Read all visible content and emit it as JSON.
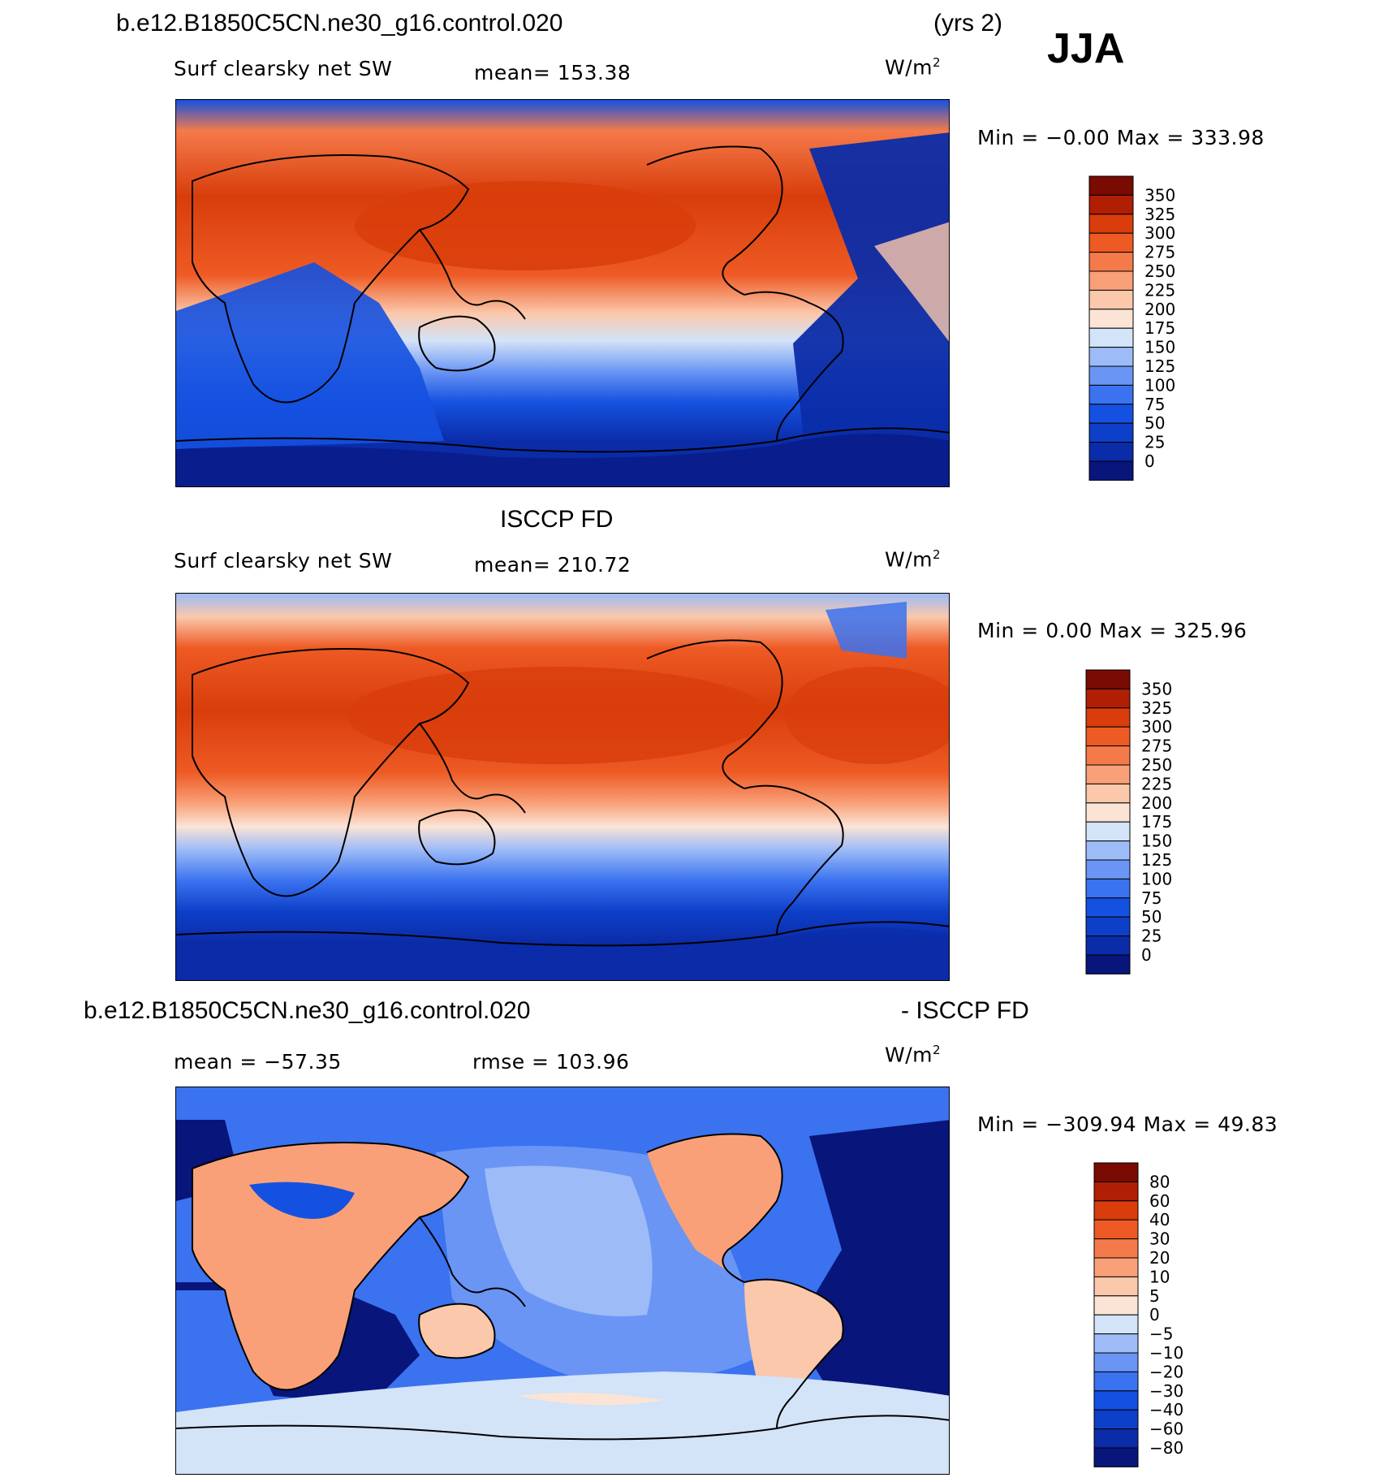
{
  "season": "JJA",
  "panels": [
    {
      "id": "model",
      "case_title": "b.e12.B1850C5CN.ne30_g16.control.020",
      "years": "(yrs 2)",
      "variable": "Surf clearsky net SW",
      "stat_text": "mean=  153.38",
      "units": "W/m",
      "units_sup": "2",
      "minmax": "Min =   −0.00  Max  =  333.98",
      "colorbar": [
        "350",
        "325",
        "300",
        "275",
        "250",
        "225",
        "200",
        "175",
        "150",
        "125",
        "100",
        "75",
        "50",
        "25",
        "0"
      ]
    },
    {
      "id": "obs",
      "case_title": "ISCCP FD",
      "variable": "Surf clearsky net SW",
      "stat_text": "mean=  210.72",
      "units": "W/m",
      "units_sup": "2",
      "minmax": "Min =     0.00  Max  =  325.96",
      "colorbar": [
        "350",
        "325",
        "300",
        "275",
        "250",
        "225",
        "200",
        "175",
        "150",
        "125",
        "100",
        "75",
        "50",
        "25",
        "0"
      ]
    },
    {
      "id": "diff",
      "case_title": "b.e12.B1850C5CN.ne30_g16.control.020",
      "case_title_right": "- ISCCP FD",
      "stat_text": "mean  =  −57.35",
      "rmse_text": "rmse  =  103.96",
      "units": "W/m",
      "units_sup": "2",
      "minmax": "Min  =  −309.94  Max  =    49.83",
      "colorbar": [
        "80",
        "60",
        "40",
        "30",
        "20",
        "10",
        "5",
        "0",
        "−5",
        "−10",
        "−20",
        "−30",
        "−40",
        "−60",
        "−80"
      ]
    }
  ],
  "colors": {
    "seq_palette": [
      "#08157a",
      "#0b2ca8",
      "#0d3fc8",
      "#1551e0",
      "#3a72f0",
      "#6a95f4",
      "#9dbbf7",
      "#d3e3f8",
      "#fbe4d5",
      "#fbc8ab",
      "#f9a078",
      "#f57a4a",
      "#ee5a24",
      "#d83d0b",
      "#b01e04",
      "#7a0b02"
    ],
    "outline": "#000000"
  },
  "chart_data": [
    {
      "type": "heatmap",
      "title": "b.e12.B1850C5CN.ne30_g16.control.020",
      "subtitle": "Surf clearsky net SW",
      "mean": 153.38,
      "min": -0.0,
      "max": 333.98,
      "units": "W/m2",
      "levels": [
        0,
        25,
        50,
        75,
        100,
        125,
        150,
        175,
        200,
        225,
        250,
        275,
        300,
        325,
        350
      ]
    },
    {
      "type": "heatmap",
      "title": "ISCCP FD",
      "subtitle": "Surf clearsky net SW",
      "mean": 210.72,
      "min": 0.0,
      "max": 325.96,
      "units": "W/m2",
      "levels": [
        0,
        25,
        50,
        75,
        100,
        125,
        150,
        175,
        200,
        225,
        250,
        275,
        300,
        325,
        350
      ]
    },
    {
      "type": "heatmap",
      "title": "b.e12.B1850C5CN.ne30_g16.control.020 - ISCCP FD",
      "mean": -57.35,
      "rmse": 103.96,
      "min": -309.94,
      "max": 49.83,
      "units": "W/m2",
      "levels": [
        -80,
        -60,
        -40,
        -30,
        -20,
        -10,
        -5,
        0,
        5,
        10,
        20,
        30,
        40,
        60,
        80
      ]
    }
  ]
}
